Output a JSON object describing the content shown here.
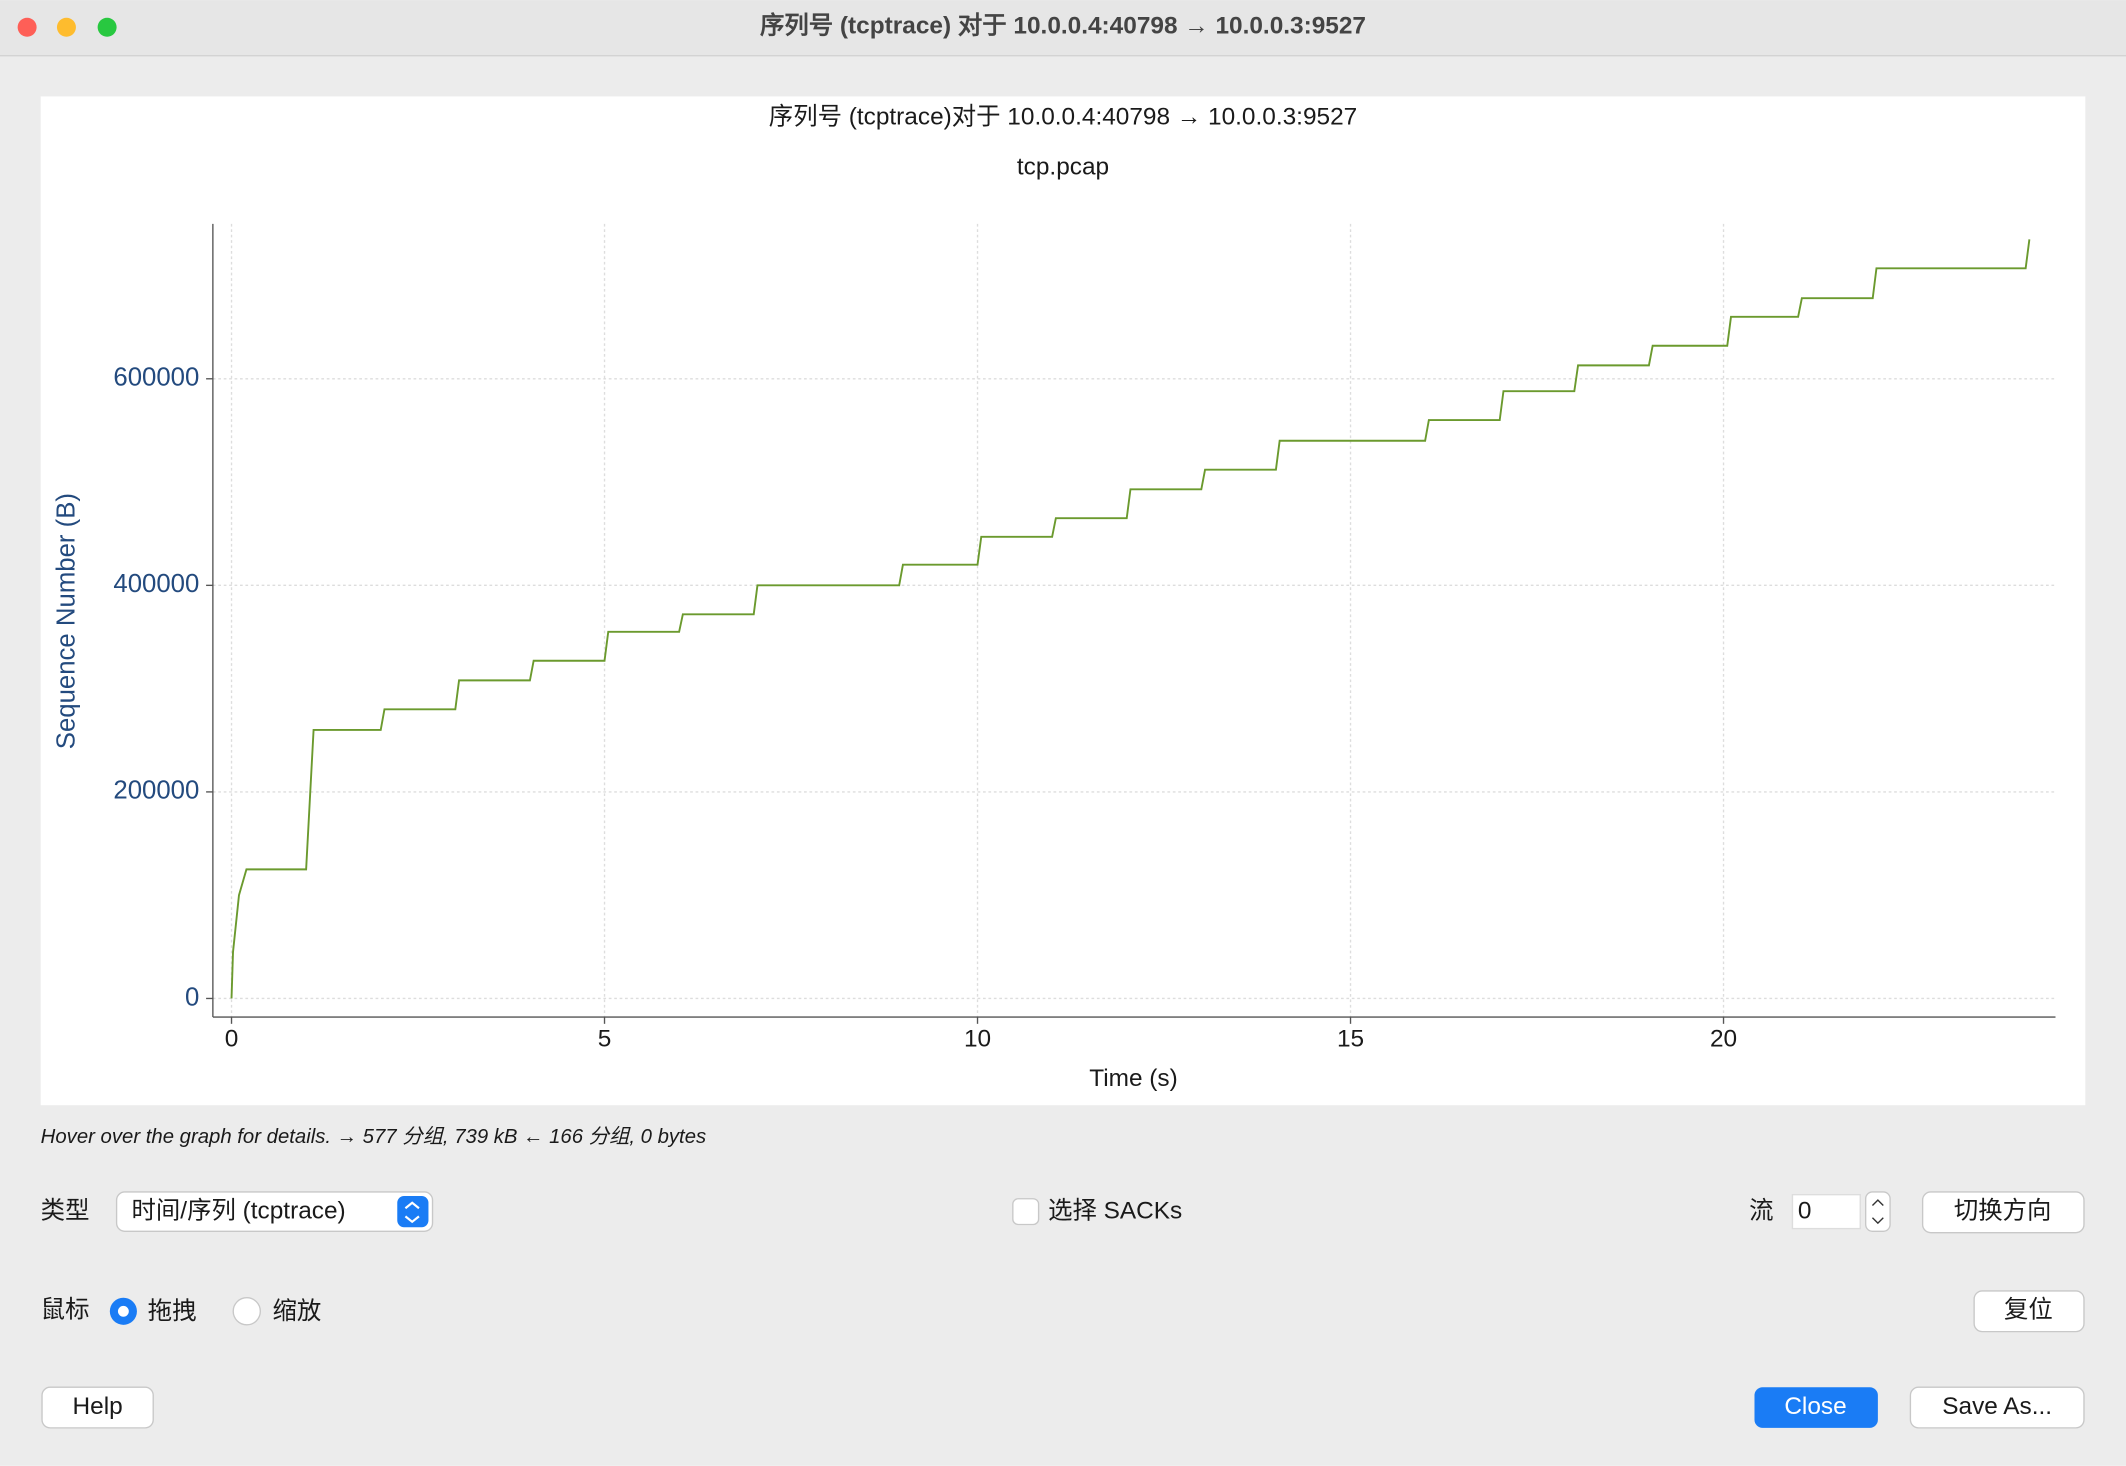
{
  "window": {
    "title": "序列号 (tcptrace) 对于 10.0.0.4:40798 → 10.0.0.3:9527"
  },
  "chart_data": {
    "type": "line",
    "title": "序列号 (tcptrace)对于 10.0.0.4:40798 → 10.0.0.3:9527",
    "subtitle": "tcp.pcap",
    "x_label": "Time (s)",
    "y_label": "Sequence Number (B)",
    "x": [
      0,
      0.02,
      0.1,
      0.2,
      1.0,
      1.1,
      2.0,
      2.05,
      3.0,
      3.05,
      4.0,
      4.05,
      5.0,
      5.05,
      6.0,
      6.05,
      7.0,
      7.05,
      8.95,
      9.0,
      10.0,
      10.05,
      11.0,
      11.05,
      12.0,
      12.05,
      13.0,
      13.05,
      14.0,
      14.05,
      16.0,
      16.05,
      17.0,
      17.05,
      18.0,
      18.05,
      19.0,
      19.05,
      20.05,
      20.1,
      21.0,
      21.05,
      22.0,
      22.05,
      24.05,
      24.1
    ],
    "values": [
      0,
      45000,
      100000,
      125000,
      125000,
      260000,
      260000,
      280000,
      280000,
      308000,
      308000,
      327000,
      327000,
      355000,
      355000,
      372000,
      372000,
      400000,
      400000,
      420000,
      420000,
      447000,
      447000,
      465000,
      465000,
      493000,
      493000,
      512000,
      512000,
      540000,
      540000,
      560000,
      560000,
      588000,
      588000,
      613000,
      613000,
      632000,
      632000,
      660000,
      660000,
      678000,
      678000,
      707000,
      707000,
      735000
    ],
    "color": "#6b9a2e",
    "xlim": [
      -0.25,
      24.45
    ],
    "xticks": [
      0,
      5,
      10,
      15,
      20
    ],
    "ylim": [
      -18000,
      750000
    ],
    "yticks": [
      0,
      200000,
      400000,
      600000
    ],
    "grid": true
  },
  "status": "Hover over the graph for details. → 577 分组, 739 kB ← 166 分组, 0 bytes",
  "controls": {
    "type_label": "类型",
    "type_value": "时间/序列 (tcptrace)",
    "sacks": "选择 SACKs",
    "stream_label": "流",
    "stream_value": "0",
    "switch": "切换方向",
    "mouse_label": "鼠标",
    "drag": "拖拽",
    "zoom": "缩放",
    "reset": "复位",
    "help": "Help",
    "close": "Close",
    "save": "Save As..."
  }
}
